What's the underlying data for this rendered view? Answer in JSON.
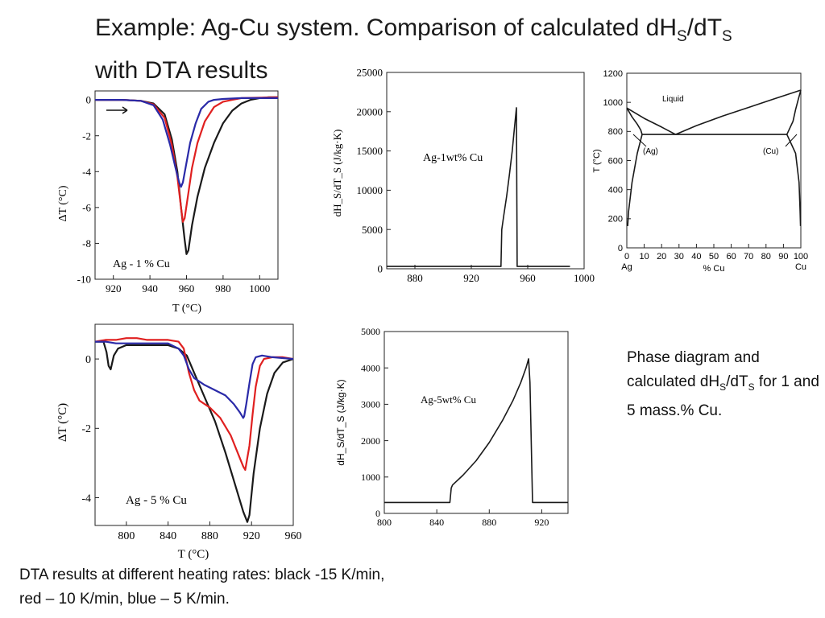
{
  "title": {
    "line1_a": "Example: Ag-Cu system. Comparison of calculated dH",
    "sub1": "S",
    "line1_b": "/dT",
    "sub2": "S",
    "line2": "with DTA results"
  },
  "caption_right": {
    "a": "Phase diagram and calculated dH",
    "s1": "S",
    "b": "/dT",
    "s2": "S",
    "c": " for 1 and 5 mass.% Cu."
  },
  "caption_bottom": {
    "line1": "DTA results at different heating rates: black  -15 K/min,",
    "line2": "red – 10 K/min, blue – 5 K/min."
  },
  "chart_data": [
    {
      "id": "dta1",
      "type": "line",
      "annotation": "Ag - 1 % Cu",
      "xlabel": "T (°C)",
      "ylabel": "ΔT (°C)",
      "xlim": [
        910,
        1010
      ],
      "ylim": [
        -10,
        0.5
      ],
      "xticks": [
        920,
        940,
        960,
        980,
        1000
      ],
      "yticks": [
        0,
        -2,
        -4,
        -6,
        -8,
        -10
      ],
      "colors": {
        "black": "#1a1a1a",
        "red": "#e02020",
        "blue": "#2a2aa8"
      },
      "series": [
        {
          "color": "black",
          "x": [
            910,
            925,
            935,
            942,
            948,
            952,
            955,
            957,
            959,
            960,
            961,
            963,
            966,
            970,
            975,
            980,
            985,
            990,
            995,
            1000,
            1005,
            1010
          ],
          "y": [
            0,
            0,
            -0.05,
            -0.2,
            -0.8,
            -2.2,
            -4,
            -6,
            -7.8,
            -8.6,
            -8.4,
            -7,
            -5.4,
            -3.8,
            -2.4,
            -1.3,
            -0.6,
            -0.2,
            0,
            0.1,
            0.15,
            0.15
          ]
        },
        {
          "color": "red",
          "x": [
            910,
            925,
            935,
            942,
            948,
            952,
            955,
            957,
            958,
            959,
            961,
            963,
            966,
            970,
            975,
            980,
            985,
            990,
            1010
          ],
          "y": [
            0,
            0,
            -0.05,
            -0.25,
            -1,
            -2.5,
            -4.3,
            -6,
            -6.8,
            -6.6,
            -5.2,
            -3.8,
            -2.4,
            -1.2,
            -0.4,
            -0.1,
            0,
            0.1,
            0.15
          ]
        },
        {
          "color": "blue",
          "x": [
            910,
            925,
            935,
            942,
            947,
            951,
            954,
            956,
            957,
            958,
            960,
            962,
            965,
            968,
            972,
            975,
            980,
            990,
            1010
          ],
          "y": [
            0,
            0,
            -0.05,
            -0.3,
            -1.1,
            -2.5,
            -3.8,
            -4.6,
            -4.85,
            -4.6,
            -3.5,
            -2.4,
            -1.3,
            -0.5,
            -0.1,
            0,
            0.05,
            0.1,
            0.1
          ]
        }
      ]
    },
    {
      "id": "calc1",
      "type": "line",
      "annotation": "Ag-1wt% Cu",
      "xlabel": "",
      "ylabel": "dH_S/dT_S (J/kg·K)",
      "xlim": [
        860,
        1000
      ],
      "ylim": [
        0,
        25000
      ],
      "xticks": [
        880,
        920,
        960,
        1000
      ],
      "yticks": [
        0,
        5000,
        10000,
        15000,
        20000,
        25000
      ],
      "series": [
        {
          "x": [
            860,
            941,
            941.6,
            943,
            945,
            947,
            949,
            950.5,
            952,
            952.5,
            953.5,
            990
          ],
          "y": [
            300,
            300,
            5000,
            6800,
            9200,
            12000,
            15000,
            17800,
            20500,
            300,
            300,
            300
          ]
        }
      ]
    },
    {
      "id": "phase",
      "type": "line",
      "annotation": "Liquid",
      "xlabel": "% Cu",
      "ylabel": "T (°C)",
      "xlim": [
        0,
        100
      ],
      "ylim": [
        0,
        1200
      ],
      "xticks": [
        0,
        10,
        20,
        30,
        40,
        50,
        60,
        70,
        80,
        90,
        100
      ],
      "yticks": [
        0,
        200,
        400,
        600,
        800,
        1000,
        1200
      ],
      "end_labels": [
        "Ag",
        "Cu"
      ],
      "phase_labels": [
        "(Ag)",
        "(Cu)"
      ],
      "eutectic_T": 779,
      "series": [
        {
          "x": [
            0,
            10,
            20,
            28
          ],
          "y": [
            961,
            890,
            830,
            779
          ]
        },
        {
          "x": [
            28,
            40,
            55,
            70,
            85,
            100
          ],
          "y": [
            779,
            840,
            905,
            965,
            1025,
            1084
          ]
        },
        {
          "x": [
            0,
            3,
            6,
            8,
            8.8
          ],
          "y": [
            961,
            900,
            850,
            810,
            779
          ]
        },
        {
          "x": [
            8.8,
            6,
            3,
            1,
            0.5
          ],
          "y": [
            779,
            650,
            450,
            250,
            150
          ]
        },
        {
          "x": [
            100,
            98.5,
            97,
            95.5,
            92
          ],
          "y": [
            1084,
            1020,
            950,
            870,
            779
          ]
        },
        {
          "x": [
            92,
            97,
            99,
            99.6,
            99.8
          ],
          "y": [
            779,
            650,
            450,
            250,
            150
          ]
        },
        {
          "x": [
            8.8,
            92
          ],
          "y": [
            779,
            779
          ]
        }
      ]
    },
    {
      "id": "dta5",
      "type": "line",
      "annotation": "Ag - 5 % Cu",
      "xlabel": "T (°C)",
      "ylabel": "ΔT (°C)",
      "xlim": [
        770,
        960
      ],
      "ylim": [
        -4.8,
        1
      ],
      "xticks": [
        800,
        840,
        880,
        920,
        960
      ],
      "yticks": [
        0,
        -2,
        -4
      ],
      "colors": {
        "black": "#1a1a1a",
        "red": "#e02020",
        "blue": "#2a2aa8"
      },
      "series": [
        {
          "color": "black",
          "x": [
            770,
            778,
            781,
            783,
            785,
            788,
            792,
            800,
            810,
            820,
            830,
            840,
            850,
            858,
            865,
            875,
            885,
            895,
            905,
            912,
            916,
            918,
            922,
            928,
            935,
            942,
            950,
            960
          ],
          "y": [
            0.5,
            0.5,
            0.2,
            -0.2,
            -0.3,
            0.1,
            0.3,
            0.4,
            0.4,
            0.4,
            0.4,
            0.4,
            0.3,
            0.1,
            -0.4,
            -1.1,
            -1.8,
            -2.7,
            -3.7,
            -4.4,
            -4.7,
            -4.5,
            -3.3,
            -2,
            -1,
            -0.4,
            -0.1,
            0
          ]
        },
        {
          "color": "red",
          "x": [
            770,
            780,
            790,
            800,
            810,
            820,
            830,
            840,
            850,
            855,
            860,
            865,
            870,
            880,
            890,
            900,
            908,
            912,
            914,
            918,
            921,
            924,
            928,
            932,
            940,
            950,
            960
          ],
          "y": [
            0.5,
            0.55,
            0.55,
            0.6,
            0.6,
            0.55,
            0.55,
            0.55,
            0.5,
            0.3,
            -0.4,
            -0.9,
            -1.2,
            -1.4,
            -1.7,
            -2.2,
            -2.8,
            -3.1,
            -3.2,
            -2.5,
            -1.6,
            -0.8,
            -0.2,
            0,
            0.05,
            0.05,
            0
          ]
        },
        {
          "color": "blue",
          "x": [
            770,
            780,
            790,
            800,
            810,
            820,
            830,
            840,
            850,
            855,
            860,
            865,
            875,
            885,
            895,
            903,
            909,
            912,
            913,
            915,
            918,
            921,
            924,
            930,
            940,
            960
          ],
          "y": [
            0.5,
            0.5,
            0.45,
            0.45,
            0.45,
            0.45,
            0.45,
            0.45,
            0.3,
            0.1,
            -0.3,
            -0.55,
            -0.75,
            -0.9,
            -1.05,
            -1.3,
            -1.55,
            -1.7,
            -1.65,
            -1.3,
            -0.7,
            -0.15,
            0.05,
            0.1,
            0.05,
            0
          ]
        }
      ]
    },
    {
      "id": "calc5",
      "type": "line",
      "annotation": "Ag-5wt% Cu",
      "xlabel": "",
      "ylabel": "dH_S/dT_S (J/kg·K)",
      "xlim": [
        800,
        940
      ],
      "ylim": [
        0,
        5000
      ],
      "xticks": [
        800,
        840,
        880,
        920
      ],
      "yticks": [
        0,
        1000,
        2000,
        3000,
        4000,
        5000
      ],
      "series": [
        {
          "x": [
            800,
            850,
            851,
            852,
            860,
            870,
            880,
            890,
            898,
            904,
            908,
            910,
            911,
            913,
            940
          ],
          "y": [
            300,
            300,
            700,
            780,
            1050,
            1450,
            1950,
            2550,
            3100,
            3600,
            4000,
            4250,
            3600,
            300,
            300
          ]
        }
      ]
    }
  ]
}
